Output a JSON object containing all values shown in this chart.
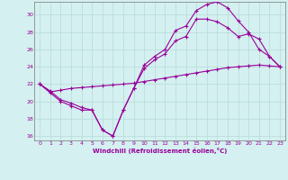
{
  "xlabel": "Windchill (Refroidissement éolien,°C)",
  "bg_color": "#d4f0f0",
  "line_color": "#990099",
  "grid_color": "#bbdddd",
  "xlim": [
    -0.5,
    23.5
  ],
  "ylim": [
    15.5,
    31.5
  ],
  "xticks": [
    0,
    1,
    2,
    3,
    4,
    5,
    6,
    7,
    8,
    9,
    10,
    11,
    12,
    13,
    14,
    15,
    16,
    17,
    18,
    19,
    20,
    21,
    22,
    23
  ],
  "yticks": [
    16,
    18,
    20,
    22,
    24,
    26,
    28,
    30
  ],
  "line1_x": [
    0,
    1,
    2,
    3,
    4,
    5,
    6,
    7,
    8,
    9,
    10,
    11,
    12,
    13,
    14,
    15,
    16,
    17,
    18,
    19,
    20,
    21,
    22,
    23
  ],
  "line1_y": [
    22,
    21,
    20,
    19.5,
    19,
    19,
    16.7,
    16,
    19,
    21.5,
    24.2,
    25.2,
    26.0,
    28.2,
    28.7,
    30.5,
    31.2,
    31.5,
    30.8,
    29.3,
    28.0,
    26.0,
    25.2,
    24.0
  ],
  "line2_x": [
    0,
    1,
    2,
    3,
    4,
    5,
    6,
    7,
    8,
    9,
    10,
    11,
    12,
    13,
    14,
    15,
    16,
    17,
    18,
    19,
    20,
    21,
    22,
    23
  ],
  "line2_y": [
    22,
    21.2,
    20.2,
    19.8,
    19.3,
    19.0,
    16.7,
    16,
    19,
    21.5,
    23.8,
    24.8,
    25.5,
    27.0,
    27.5,
    29.5,
    29.5,
    29.2,
    28.5,
    27.5,
    27.8,
    27.2,
    25.2,
    24.0
  ],
  "line3_x": [
    0,
    1,
    2,
    3,
    4,
    5,
    6,
    7,
    8,
    9,
    10,
    11,
    12,
    13,
    14,
    15,
    16,
    17,
    18,
    19,
    20,
    21,
    22,
    23
  ],
  "line3_y": [
    22,
    21.1,
    21.3,
    21.5,
    21.6,
    21.7,
    21.8,
    21.9,
    22.0,
    22.1,
    22.3,
    22.5,
    22.7,
    22.9,
    23.1,
    23.3,
    23.5,
    23.7,
    23.9,
    24.0,
    24.1,
    24.2,
    24.1,
    24.0
  ]
}
